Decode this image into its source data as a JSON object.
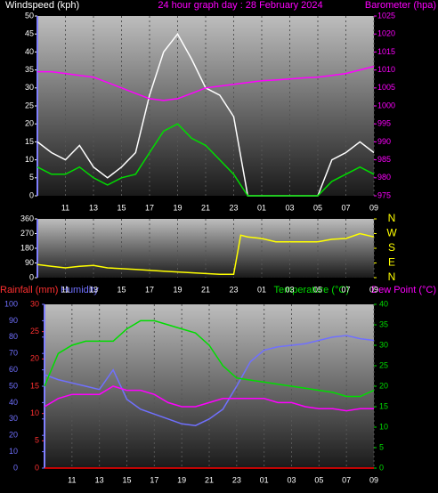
{
  "chart_data": [
    {
      "type": "line",
      "title": "24 hour graph day : 28 February 2024",
      "y_label": "Windspeed (kph)",
      "x": [
        0,
        1,
        2,
        3,
        4,
        5,
        6,
        7,
        8,
        9,
        10,
        11,
        12,
        13,
        14,
        15,
        16,
        17,
        18,
        19,
        20,
        21,
        22,
        23,
        24
      ],
      "xlim": [
        0,
        24
      ],
      "xticks": [
        {
          "value": 2,
          "label": "11"
        },
        {
          "value": 4,
          "label": "13"
        },
        {
          "value": 6,
          "label": "15"
        },
        {
          "value": 8,
          "label": "17"
        },
        {
          "value": 10,
          "label": "19"
        },
        {
          "value": 12,
          "label": "21"
        },
        {
          "value": 14,
          "label": "23"
        },
        {
          "value": 16,
          "label": "01"
        },
        {
          "value": 18,
          "label": "03"
        },
        {
          "value": 20,
          "label": "05"
        },
        {
          "value": 22,
          "label": "07"
        },
        {
          "value": 24,
          "label": "09"
        }
      ],
      "ylim": [
        0,
        50
      ],
      "yticks": [
        0,
        5,
        10,
        15,
        20,
        25,
        30,
        35,
        40,
        45,
        50
      ],
      "y2lim": [
        975,
        1025
      ],
      "y2ticks": [
        975,
        980,
        985,
        990,
        995,
        1000,
        1005,
        1010,
        1015,
        1020,
        1025
      ],
      "series": [
        {
          "color": "#ffffff",
          "values": [
            15,
            12,
            10,
            14,
            8,
            5,
            8,
            12,
            28,
            40,
            45,
            38,
            30,
            28,
            22,
            0,
            0,
            0,
            0,
            0,
            0,
            10,
            12,
            15,
            12
          ]
        },
        {
          "color": "#00dd00",
          "values": [
            8,
            6,
            6,
            8,
            5,
            3,
            5,
            6,
            12,
            18,
            20,
            16,
            14,
            10,
            6,
            0,
            0,
            0,
            0,
            0,
            0,
            4,
            6,
            8,
            6
          ]
        },
        {
          "name": "Barometer (hpa)",
          "axis": "y2",
          "color": "#ff00ff",
          "values": [
            1009.5,
            1009.5,
            1009,
            1008.5,
            1008,
            1006.5,
            1005,
            1003.5,
            1002,
            1001.5,
            1002,
            1003.5,
            1005,
            1005.5,
            1006,
            1006.5,
            1007,
            1007.2,
            1007.5,
            1007.8,
            1008,
            1008.5,
            1009,
            1010,
            1011
          ]
        }
      ]
    },
    {
      "type": "line",
      "x": [
        0,
        1,
        2,
        3,
        4,
        5,
        6,
        7,
        8,
        9,
        10,
        11,
        12,
        13,
        14,
        14.5,
        15,
        16,
        17,
        18,
        19,
        20,
        21,
        22,
        23,
        24
      ],
      "xlim": [
        0,
        24
      ],
      "xticks": [
        {
          "value": 2,
          "label": "11"
        },
        {
          "value": 4,
          "label": "13"
        },
        {
          "value": 6,
          "label": "15"
        },
        {
          "value": 8,
          "label": "17"
        },
        {
          "value": 10,
          "label": "19"
        },
        {
          "value": 12,
          "label": "21"
        },
        {
          "value": 14,
          "label": "23"
        },
        {
          "value": 16,
          "label": "01"
        },
        {
          "value": 18,
          "label": "03"
        },
        {
          "value": 20,
          "label": "05"
        },
        {
          "value": 22,
          "label": "07"
        },
        {
          "value": 24,
          "label": "09"
        }
      ],
      "ylim": [
        0,
        360
      ],
      "yticks": [
        0,
        90,
        180,
        270,
        360
      ],
      "y2lim": [
        0,
        360
      ],
      "y2ticks": [
        {
          "value": 360,
          "label": "N"
        },
        {
          "value": 270,
          "label": "W"
        },
        {
          "value": 180,
          "label": "S"
        },
        {
          "value": 90,
          "label": "E"
        },
        {
          "value": 0,
          "label": "N"
        }
      ],
      "series": [
        {
          "color": "#ffff00",
          "values": [
            80,
            70,
            60,
            70,
            75,
            60,
            55,
            50,
            45,
            40,
            35,
            30,
            25,
            20,
            20,
            260,
            250,
            240,
            220,
            220,
            220,
            220,
            235,
            240,
            270,
            250
          ]
        }
      ]
    },
    {
      "type": "line",
      "x": [
        0,
        1,
        2,
        3,
        4,
        5,
        6,
        7,
        8,
        9,
        10,
        11,
        12,
        13,
        14,
        15,
        16,
        17,
        18,
        19,
        20,
        21,
        22,
        23,
        24
      ],
      "xlim": [
        0,
        24
      ],
      "xticks": [
        {
          "value": 2,
          "label": "11"
        },
        {
          "value": 4,
          "label": "13"
        },
        {
          "value": 6,
          "label": "15"
        },
        {
          "value": 8,
          "label": "17"
        },
        {
          "value": 10,
          "label": "19"
        },
        {
          "value": 12,
          "label": "21"
        },
        {
          "value": 14,
          "label": "23"
        },
        {
          "value": 16,
          "label": "01"
        },
        {
          "value": 18,
          "label": "03"
        },
        {
          "value": 20,
          "label": "05"
        },
        {
          "value": 22,
          "label": "07"
        },
        {
          "value": 24,
          "label": "09"
        }
      ],
      "ylim": [
        0,
        30
      ],
      "yticks": [
        0,
        5,
        10,
        15,
        20,
        25,
        30
      ],
      "y2lim": [
        0,
        40
      ],
      "y2ticks": [
        0,
        5,
        10,
        15,
        20,
        25,
        30,
        35,
        40
      ],
      "y3lim": [
        0,
        100
      ],
      "y3ticks": [
        0,
        10,
        20,
        30,
        40,
        50,
        60,
        70,
        80,
        90,
        100
      ],
      "series": [
        {
          "name": "Rainfall (mm)",
          "color": "#ff0000",
          "values": [
            0,
            0,
            0,
            0,
            0,
            0,
            0,
            0,
            0,
            0,
            0,
            0,
            0,
            0,
            0,
            0,
            0,
            0,
            0,
            0,
            0,
            0,
            0,
            0,
            0
          ]
        },
        {
          "name": "Humidity",
          "axis": "y3",
          "color": "#7070ff",
          "values": [
            57,
            54,
            52,
            50,
            48,
            60,
            42,
            36,
            33,
            30,
            27,
            26,
            30,
            36,
            50,
            65,
            72,
            74,
            75,
            76,
            78,
            80,
            81,
            79,
            78
          ]
        },
        {
          "name": "Temperature (°C)",
          "axis": "y2",
          "color": "#00dd00",
          "values": [
            20,
            28,
            30,
            31,
            31,
            31,
            34,
            36,
            36,
            35,
            34,
            33,
            30,
            25,
            22,
            21.5,
            21,
            20.5,
            20,
            19.5,
            19,
            18.5,
            17.5,
            17.5,
            19
          ]
        },
        {
          "name": "Dew Point (°C)",
          "axis": "y2",
          "color": "#ff00ff",
          "values": [
            15,
            17,
            18,
            18,
            18,
            20,
            19,
            19,
            18,
            16,
            15,
            15,
            16,
            17,
            17,
            17,
            17,
            16,
            16,
            15,
            14.5,
            14.5,
            14,
            14.5,
            14.5
          ]
        }
      ]
    }
  ]
}
